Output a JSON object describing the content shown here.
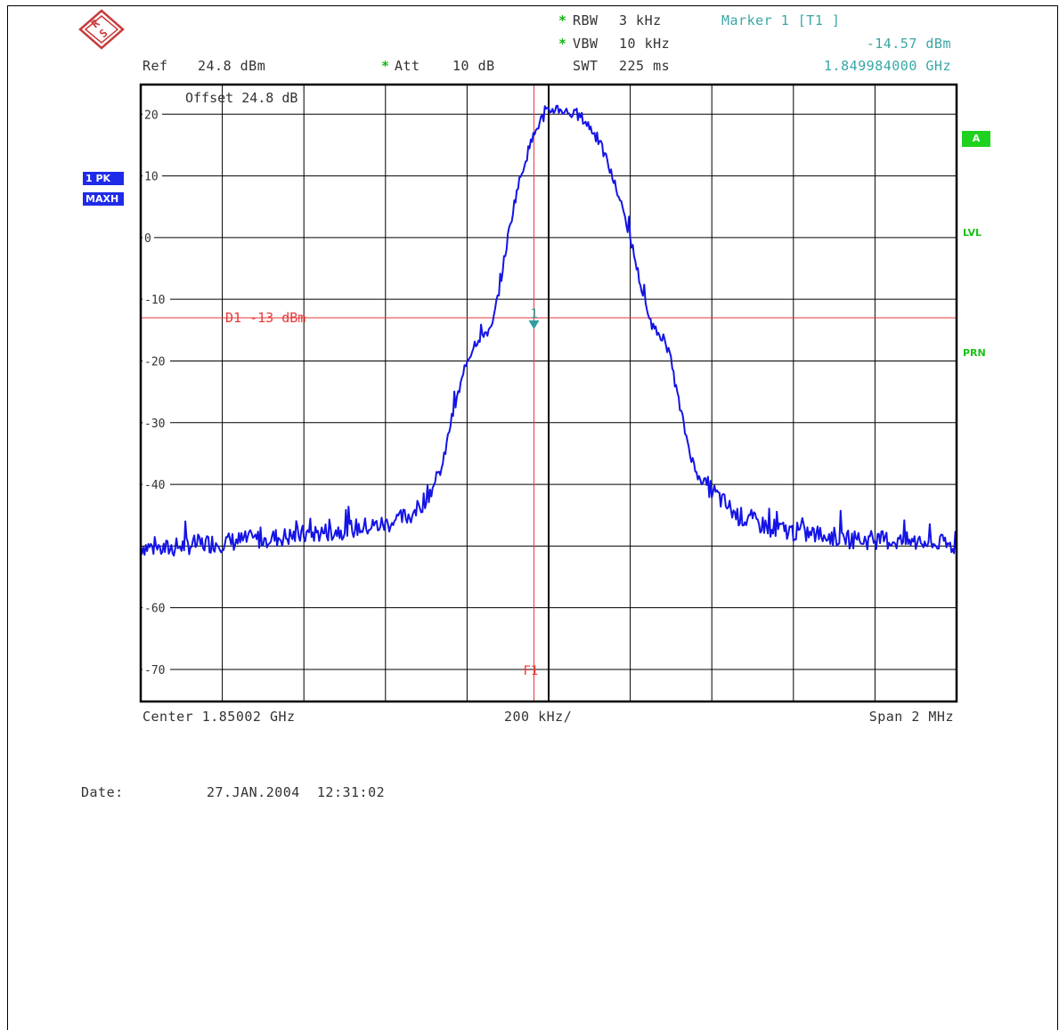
{
  "header": {
    "rbw_label": "RBW",
    "rbw_value": "3 kHz",
    "vbw_label": "VBW",
    "vbw_value": "10 kHz",
    "swt_label": "SWT",
    "swt_value": "225 ms",
    "att_label": "Att",
    "att_value": "10 dB",
    "ref_label": "Ref",
    "ref_value": "24.8 dBm",
    "star": "*",
    "marker_title": "Marker 1 [T1 ]",
    "marker_level": "-14.57 dBm",
    "marker_freq": "1.849984000 GHz"
  },
  "side": {
    "trace_badge": "1 PK",
    "detector_badge": "MAXH",
    "a_badge": "A",
    "lvl_badge": "LVL",
    "prn_badge": "PRN"
  },
  "plot": {
    "offset_text": "Offset  24.8 dB",
    "display_line_text": "D1 -13 dBm",
    "marker_number": "1",
    "f1_label": "F1"
  },
  "footer": {
    "center_text": "Center 1.85002 GHz",
    "div_text": "200 kHz/",
    "span_text": "Span 2 MHz",
    "date_label": "Date:",
    "date_value": "27.JAN.2004  12:31:02"
  },
  "colors": {
    "trace": "#1414e6",
    "marker_line": "#e83a3a",
    "marker_symbol": "#2f9e9e",
    "grid": "#000000"
  },
  "icons": {
    "logo": "rohde-schwarz-logo-icon"
  },
  "chart_data": {
    "type": "line",
    "title": "",
    "xlabel": "",
    "ylabel": "",
    "xlim": [
      1.84902,
      1.85102
    ],
    "ylim": [
      -75.2,
      24.8
    ],
    "x_unit": "GHz",
    "y_unit": "dBm",
    "y_ticks": [
      20,
      10,
      0,
      -10,
      -20,
      -30,
      -40,
      -50,
      -60,
      -70
    ],
    "y_tick_labels": [
      "20",
      "10",
      "0",
      "-10",
      "-20",
      "-30",
      "-40",
      "",
      "-60",
      "-70"
    ],
    "grid": true,
    "display_line": -13,
    "marker": {
      "x": 1.849984,
      "y": -14.57
    },
    "f1_line_x": 1.849984,
    "center_line_x": 1.85002,
    "series": [
      {
        "x": [
          1.84902,
          1.84908,
          1.84914,
          1.8492,
          1.84926,
          1.84932,
          1.84938,
          1.84944,
          1.8495,
          1.84956,
          1.84962,
          1.84968,
          1.8497,
          1.84972,
          1.84974,
          1.84976,
          1.84978,
          1.8498,
          1.84982,
          1.84984,
          1.84986,
          1.84988,
          1.8499,
          1.84992,
          1.84994,
          1.84996,
          1.84998,
          1.85,
          1.85002,
          1.85004,
          1.85006,
          1.85008,
          1.8501,
          1.85012,
          1.85014,
          1.85016,
          1.85018,
          1.8502,
          1.85022,
          1.85024,
          1.85026,
          1.85028,
          1.8503,
          1.85032,
          1.85034,
          1.85036,
          1.85038,
          1.85042,
          1.85048,
          1.85054,
          1.8506,
          1.85066,
          1.85072,
          1.85078,
          1.85084,
          1.8509,
          1.85096,
          1.85102
        ],
        "y": [
          -50,
          -50.5,
          -49.8,
          -49.5,
          -49.2,
          -48.8,
          -48.5,
          -48,
          -47.5,
          -47,
          -46.5,
          -45,
          -44,
          -42,
          -40,
          -37,
          -30,
          -25,
          -20,
          -17,
          -15.5,
          -15,
          -8,
          0,
          7,
          12,
          16,
          19,
          20.5,
          21,
          20.5,
          20,
          19.5,
          18,
          16,
          13,
          9,
          5,
          0,
          -6,
          -12,
          -15,
          -16,
          -20,
          -27,
          -33,
          -38,
          -41,
          -45,
          -46.5,
          -47.5,
          -48,
          -48.5,
          -49,
          -49,
          -49.3,
          -49.6,
          -50
        ]
      }
    ]
  }
}
